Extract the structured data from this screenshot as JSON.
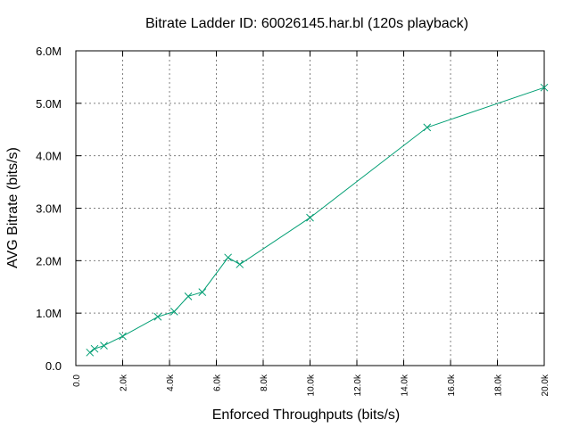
{
  "chart_data": {
    "type": "line",
    "title": "Bitrate Ladder ID: 60026145.har.bl (120s playback)",
    "xlabel": "Enforced Throughputs (bits/s)",
    "ylabel": "AVG Bitrate (bits/s)",
    "xlim": [
      0,
      20000
    ],
    "ylim": [
      0,
      6000000
    ],
    "grid": true,
    "color": "#009e73",
    "x_ticks": [
      {
        "value": 0,
        "label": "0.0"
      },
      {
        "value": 2000,
        "label": "2.0k"
      },
      {
        "value": 4000,
        "label": "4.0k"
      },
      {
        "value": 6000,
        "label": "6.0k"
      },
      {
        "value": 8000,
        "label": "8.0k"
      },
      {
        "value": 10000,
        "label": "10.0k"
      },
      {
        "value": 12000,
        "label": "12.0k"
      },
      {
        "value": 14000,
        "label": "14.0k"
      },
      {
        "value": 16000,
        "label": "16.0k"
      },
      {
        "value": 18000,
        "label": "18.0k"
      },
      {
        "value": 20000,
        "label": "20.0k"
      }
    ],
    "y_ticks": [
      {
        "value": 0,
        "label": "0.0"
      },
      {
        "value": 1000000,
        "label": "1.0M"
      },
      {
        "value": 2000000,
        "label": "2.0M"
      },
      {
        "value": 3000000,
        "label": "3.0M"
      },
      {
        "value": 4000000,
        "label": "4.0M"
      },
      {
        "value": 5000000,
        "label": "5.0M"
      },
      {
        "value": 6000000,
        "label": "6.0M"
      }
    ],
    "series": [
      {
        "x": [
          600,
          800,
          1200,
          2000,
          3500,
          4200,
          4800,
          5400,
          6500,
          7000,
          10000,
          15000,
          20000
        ],
        "y": [
          250000,
          320000,
          380000,
          560000,
          930000,
          1030000,
          1320000,
          1400000,
          2060000,
          1930000,
          2820000,
          4540000,
          5300000
        ]
      }
    ]
  }
}
